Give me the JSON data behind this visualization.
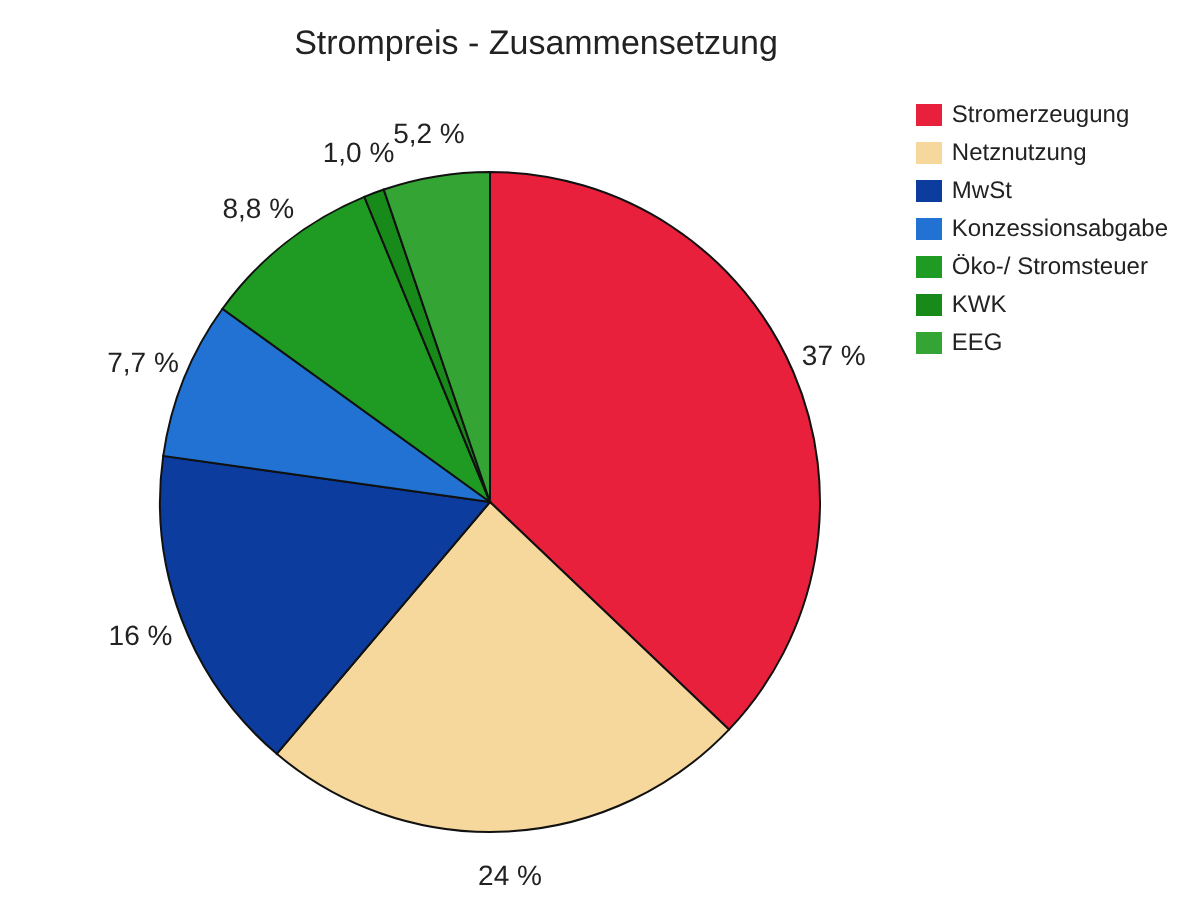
{
  "chart_data": {
    "type": "pie",
    "title": "Strompreis - Zusammensetzung",
    "categories": [
      "Stromerzeugung",
      "Netznutzung",
      "MwSt",
      "Konzessionsabgabe",
      "Öko-/ Stromsteuer",
      "KWK",
      "EEG"
    ],
    "values": [
      37,
      24,
      16,
      7.7,
      8.8,
      1.0,
      5.2
    ],
    "value_labels": [
      "37 %",
      "24 %",
      "16 %",
      "7,7 %",
      "8,8 %",
      "1,0 %",
      "5,2 %"
    ],
    "colors": [
      "#e8203c",
      "#f6d89c",
      "#0c3c9e",
      "#2172d2",
      "#1f9a22",
      "#178a1a",
      "#34a534"
    ],
    "legend": "top right"
  }
}
